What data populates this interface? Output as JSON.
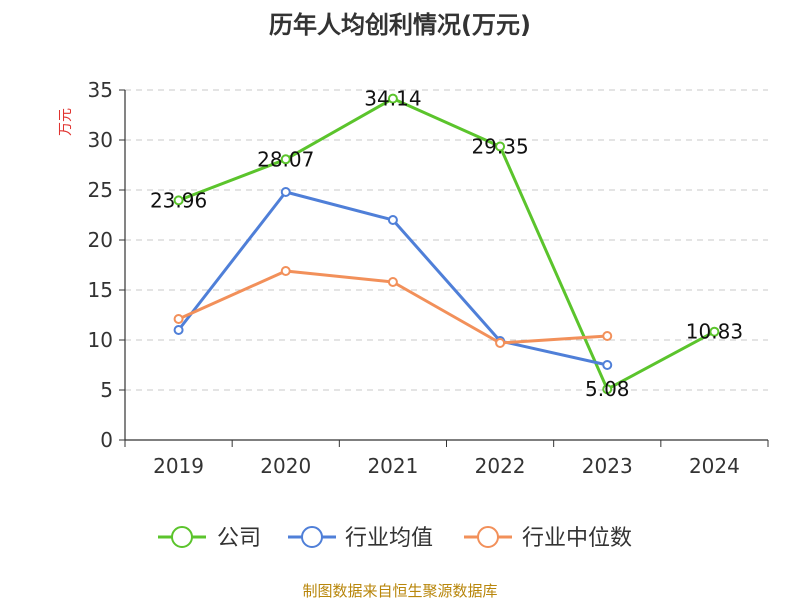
{
  "chart_data": {
    "type": "line",
    "title": "历年人均创利情况(万元)",
    "ylabel": "万元",
    "xlabel": "",
    "categories": [
      "2019",
      "2020",
      "2021",
      "2022",
      "2023",
      "2024"
    ],
    "ylim": [
      0,
      35
    ],
    "yticks": [
      0,
      5,
      10,
      15,
      20,
      25,
      30,
      35
    ],
    "grid": true,
    "legend_position": "bottom",
    "series": [
      {
        "name": "公司",
        "color": "#5bc42c",
        "values": [
          23.96,
          28.07,
          34.14,
          29.35,
          5.08,
          10.83
        ],
        "labels": [
          "23.96",
          "28.07",
          "34.14",
          "29.35",
          "5.08",
          "10.83"
        ]
      },
      {
        "name": "行业均值",
        "color": "#4f7fd8",
        "values": [
          11.0,
          24.8,
          22.0,
          9.9,
          7.5,
          null
        ]
      },
      {
        "name": "行业中位数",
        "color": "#f2905a",
        "values": [
          12.1,
          16.9,
          15.8,
          9.7,
          10.4,
          null
        ]
      }
    ]
  },
  "footer": "制图数据来自恒生聚源数据库"
}
